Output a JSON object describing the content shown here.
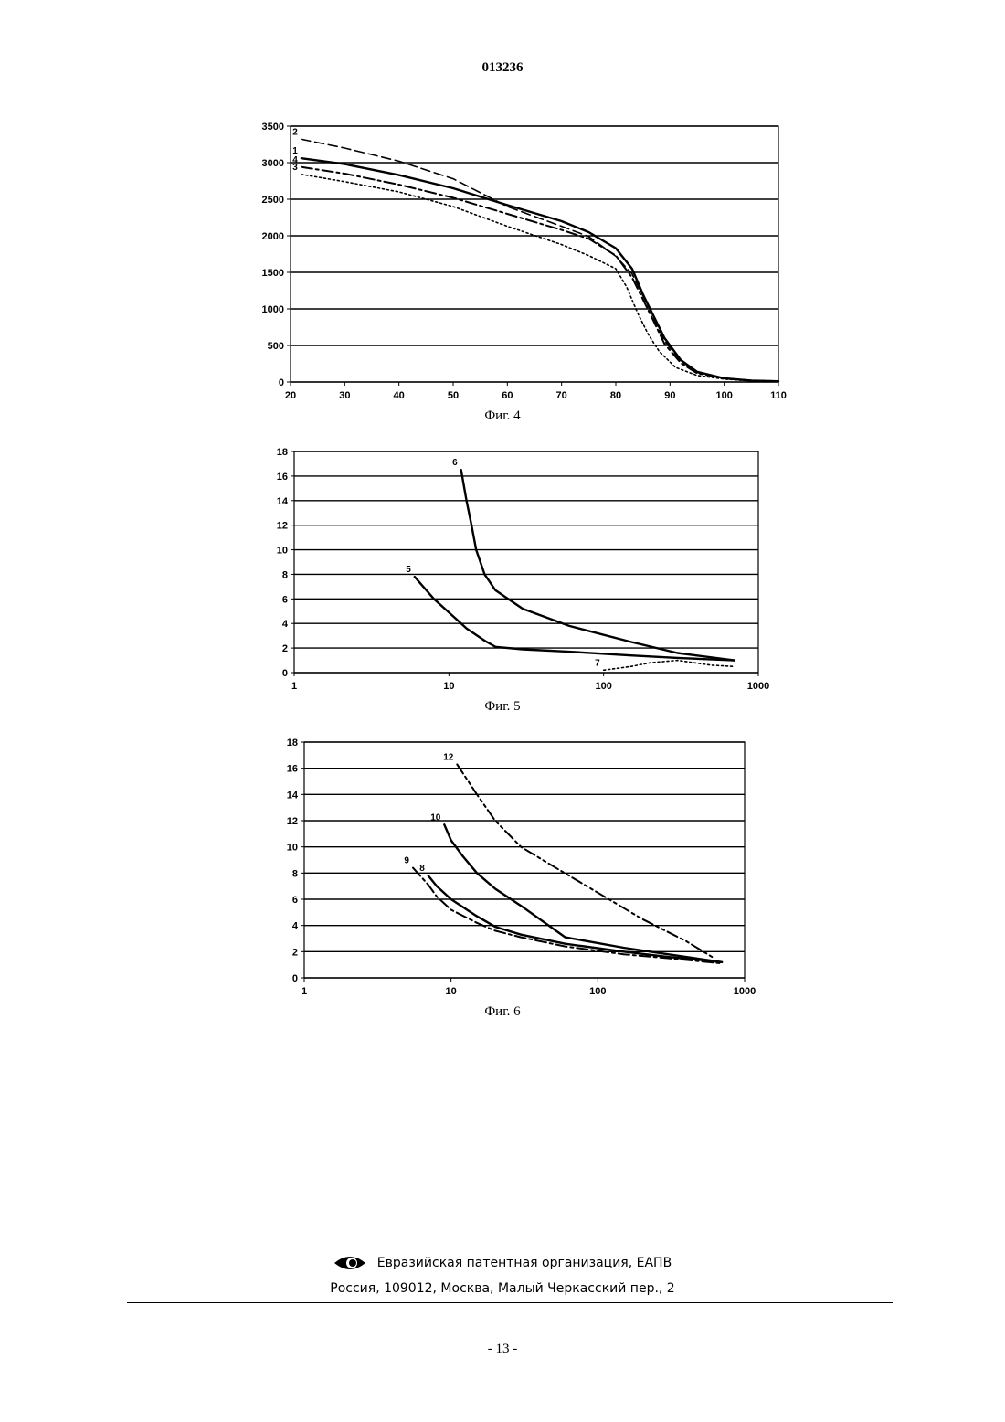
{
  "header": {
    "doc_number": "013236"
  },
  "figures": [
    {
      "caption": "Фиг. 4"
    },
    {
      "caption": "Фиг. 5"
    },
    {
      "caption": "Фиг. 6"
    }
  ],
  "footer": {
    "org": "Евразийская патентная организация, ЕАПВ",
    "address": "Россия, 109012, Москва, Малый Черкасский пер., 2",
    "logo_icon": "eye-logo-icon"
  },
  "page_number": "- 13 -",
  "chart_data": [
    {
      "type": "line",
      "title": "",
      "xlabel": "",
      "ylabel": "",
      "xlim": [
        20,
        110
      ],
      "ylim": [
        0,
        3500
      ],
      "x_ticks": [
        20,
        30,
        40,
        50,
        60,
        70,
        80,
        90,
        100,
        110
      ],
      "y_ticks": [
        0,
        500,
        1000,
        1500,
        2000,
        2500,
        3000,
        3500
      ],
      "grid": "horizontal",
      "series": [
        {
          "name": "1",
          "style": "solid",
          "x": [
            22,
            30,
            40,
            50,
            60,
            70,
            75,
            80,
            83,
            85,
            87,
            89,
            92,
            95,
            100,
            105,
            110
          ],
          "y": [
            3060,
            2980,
            2830,
            2650,
            2420,
            2200,
            2050,
            1830,
            1550,
            1200,
            900,
            600,
            300,
            140,
            50,
            20,
            10
          ]
        },
        {
          "name": "2",
          "style": "dashed",
          "x": [
            22,
            30,
            40,
            50,
            60,
            70,
            75,
            80,
            83,
            85,
            87,
            89,
            92,
            95,
            100,
            105,
            110
          ],
          "y": [
            3320,
            3200,
            3020,
            2780,
            2400,
            2130,
            1990,
            1720,
            1480,
            1180,
            880,
            560,
            290,
            130,
            50,
            20,
            10
          ]
        },
        {
          "name": "3",
          "style": "dotted",
          "x": [
            22,
            30,
            40,
            50,
            60,
            70,
            75,
            80,
            82,
            84,
            86,
            88,
            91,
            95,
            100,
            105,
            110
          ],
          "y": [
            2840,
            2740,
            2600,
            2400,
            2130,
            1880,
            1730,
            1550,
            1300,
            950,
            650,
            420,
            200,
            90,
            40,
            15,
            8
          ]
        },
        {
          "name": "4",
          "style": "dashdot",
          "x": [
            22,
            30,
            40,
            50,
            60,
            70,
            75,
            80,
            83,
            85,
            87,
            89,
            92,
            95,
            100,
            105,
            110
          ],
          "y": [
            2940,
            2850,
            2700,
            2520,
            2300,
            2080,
            1960,
            1730,
            1430,
            1130,
            830,
            520,
            260,
            120,
            50,
            20,
            10
          ]
        }
      ]
    },
    {
      "type": "line",
      "title": "",
      "xlabel": "",
      "ylabel": "",
      "xscale": "log",
      "xlim": [
        1,
        1000
      ],
      "ylim": [
        0,
        18
      ],
      "x_ticks": [
        1,
        10,
        100,
        1000
      ],
      "y_ticks": [
        0,
        2,
        4,
        6,
        8,
        10,
        12,
        14,
        16,
        18
      ],
      "grid": "horizontal",
      "series": [
        {
          "name": "6",
          "style": "solid",
          "x": [
            12,
            13,
            14,
            15,
            17,
            20,
            30,
            60,
            150,
            300,
            700
          ],
          "y": [
            16.5,
            14,
            12,
            10,
            8,
            6.7,
            5.2,
            3.8,
            2.5,
            1.6,
            1.0
          ]
        },
        {
          "name": "5",
          "style": "solid",
          "x": [
            6,
            8,
            10,
            13,
            17,
            20,
            30,
            60,
            150,
            300,
            700
          ],
          "y": [
            7.8,
            6,
            4.9,
            3.6,
            2.6,
            2.1,
            1.9,
            1.7,
            1.4,
            1.2,
            1.0
          ]
        },
        {
          "name": "7",
          "style": "dotted",
          "x": [
            100,
            150,
            200,
            300,
            500,
            700
          ],
          "y": [
            0.2,
            0.5,
            0.8,
            1.0,
            0.6,
            0.5
          ]
        }
      ]
    },
    {
      "type": "line",
      "title": "",
      "xlabel": "",
      "ylabel": "",
      "xscale": "log",
      "xlim": [
        1,
        1000
      ],
      "ylim": [
        0,
        18
      ],
      "x_ticks": [
        1,
        10,
        100,
        1000
      ],
      "y_ticks": [
        0,
        2,
        4,
        6,
        8,
        10,
        12,
        14,
        16,
        18
      ],
      "grid": "horizontal",
      "series": [
        {
          "name": "12",
          "style": "dashdotdot",
          "x": [
            11,
            15,
            20,
            30,
            50,
            100,
            200,
            400,
            600
          ],
          "y": [
            16.3,
            14,
            12,
            10,
            8.5,
            6.5,
            4.5,
            2.8,
            1.6
          ]
        },
        {
          "name": "10",
          "style": "solid",
          "x": [
            9,
            10,
            12,
            15,
            20,
            30,
            60,
            150,
            300,
            700
          ],
          "y": [
            11.7,
            10.5,
            9.3,
            8,
            6.8,
            5.5,
            3.1,
            2.3,
            1.8,
            1.2
          ]
        },
        {
          "name": "8",
          "style": "solid",
          "x": [
            7,
            8,
            10,
            15,
            20,
            30,
            60,
            150,
            300,
            700
          ],
          "y": [
            7.8,
            7.0,
            6,
            4.7,
            3.9,
            3.3,
            2.6,
            2.0,
            1.6,
            1.2
          ]
        },
        {
          "name": "9",
          "style": "dashdot",
          "x": [
            5.5,
            7,
            8,
            10,
            15,
            20,
            30,
            60,
            150,
            300,
            700
          ],
          "y": [
            8.4,
            7.1,
            6.2,
            5.2,
            4.2,
            3.6,
            3.1,
            2.4,
            1.8,
            1.5,
            1.1
          ]
        }
      ]
    }
  ]
}
